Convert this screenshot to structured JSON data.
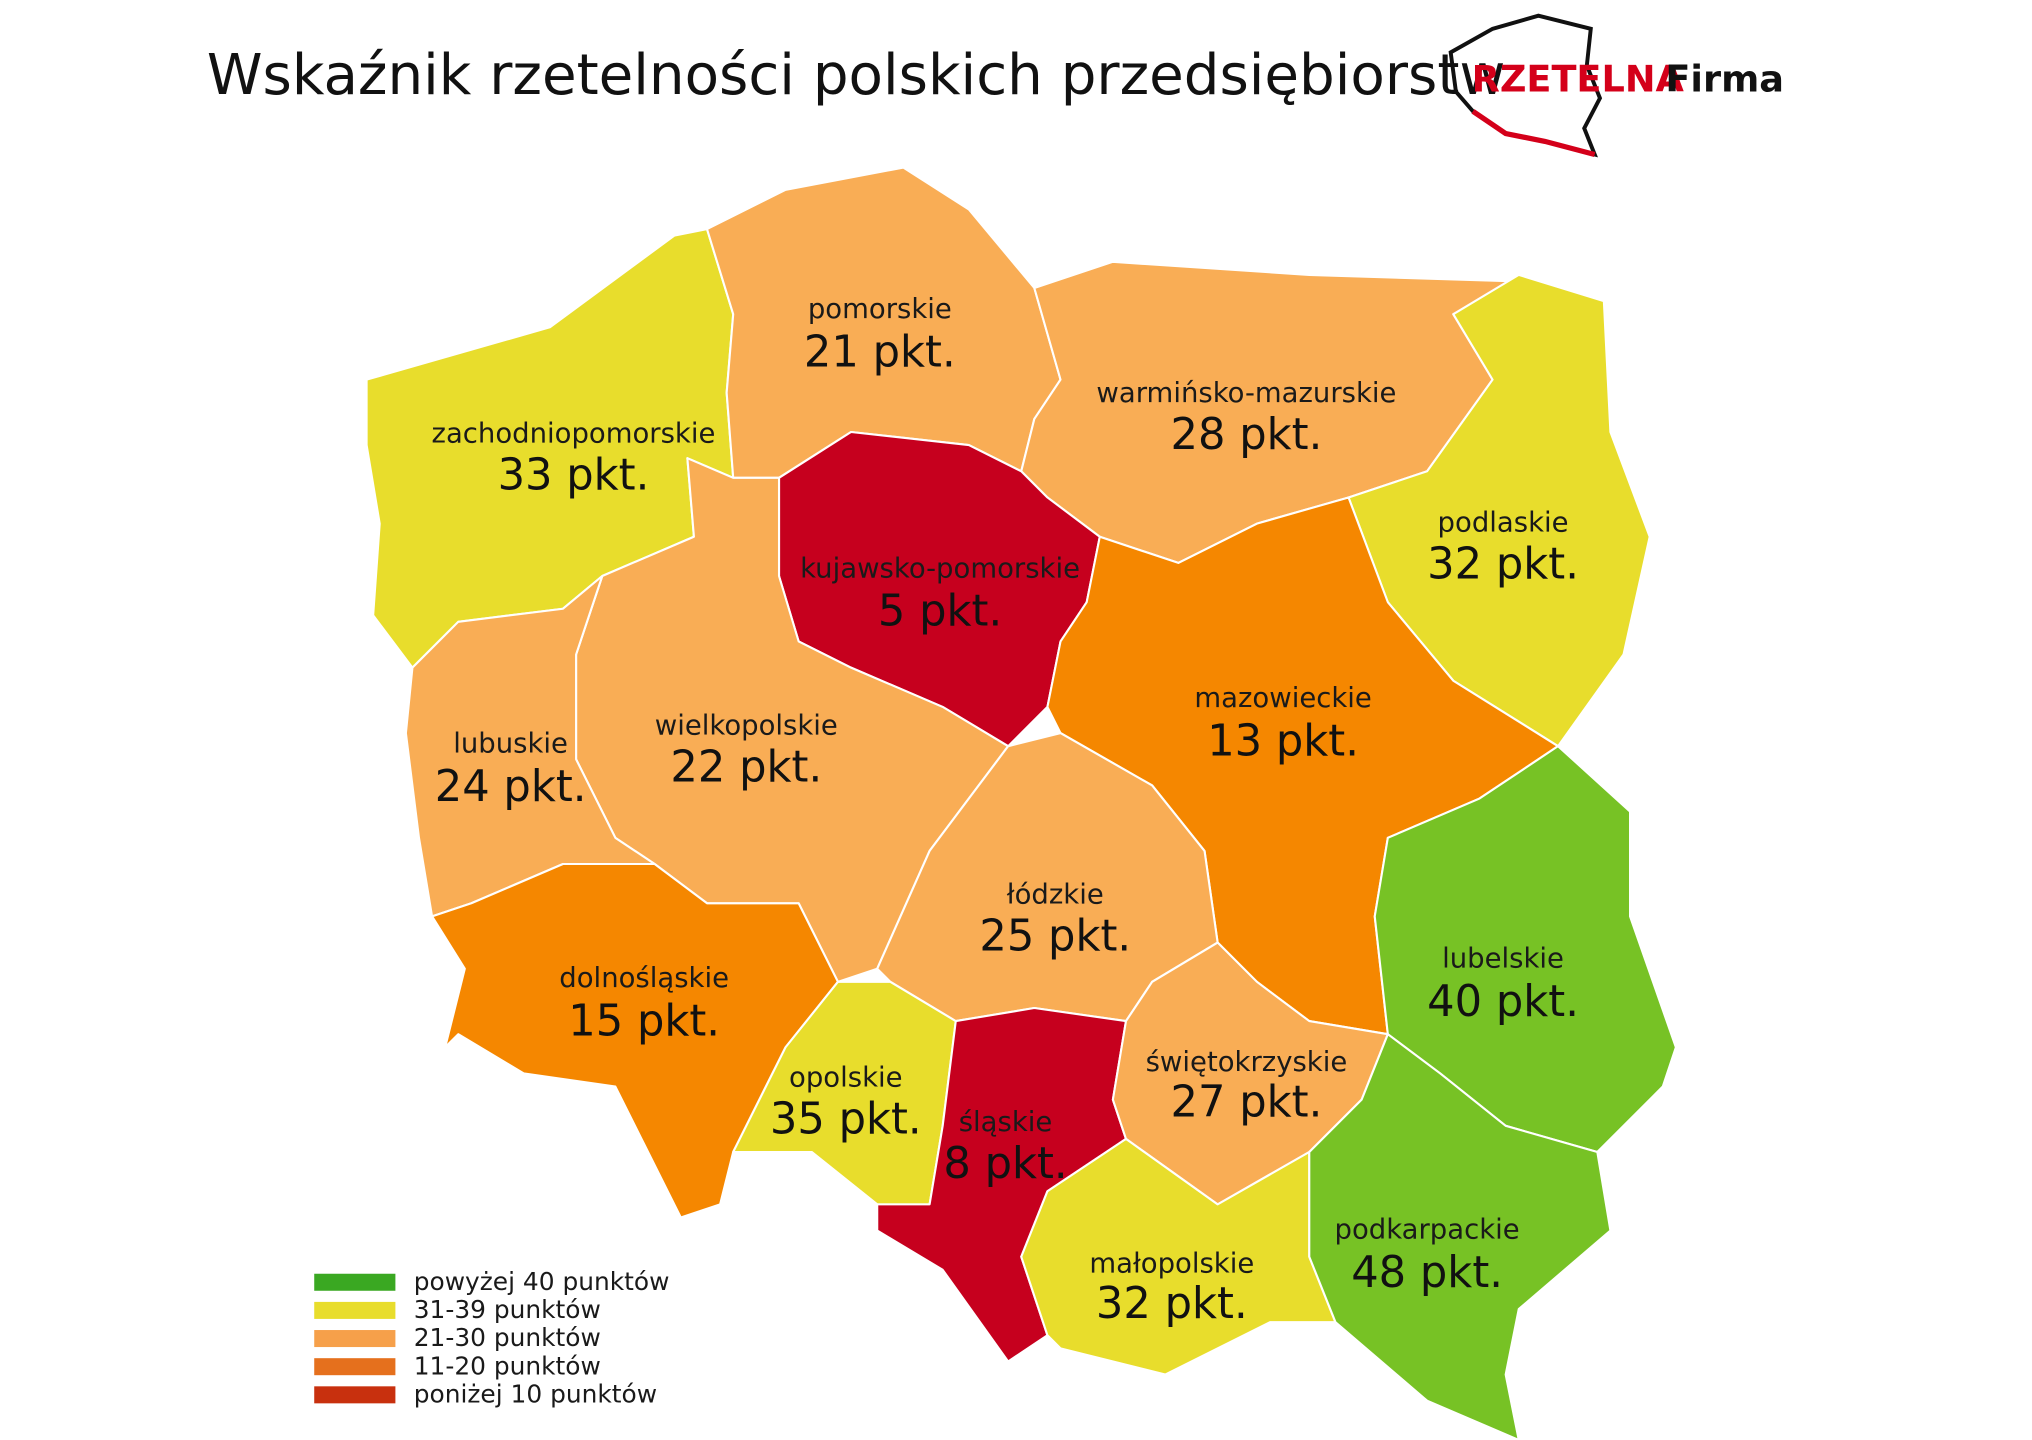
{
  "header": {
    "title": "Wskaźnik rzetelności polskich przedsiębiorstw",
    "logo": {
      "brand": "RZETELNA",
      "word": "Firma"
    }
  },
  "regions": [
    {
      "name": "zachodniopomorskie",
      "label": "33 pkt.",
      "color": "#e8dd2c"
    },
    {
      "name": "pomorskie",
      "label": "21 pkt.",
      "color": "#f9ad55"
    },
    {
      "name": "warmińsko-mazurskie",
      "label": "28 pkt.",
      "color": "#f9ad55"
    },
    {
      "name": "podlaskie",
      "label": "32 pkt.",
      "color": "#e8dd2c"
    },
    {
      "name": "kujawsko-pomorskie",
      "label": "5 pkt.",
      "color": "#c6001e"
    },
    {
      "name": "wielkopolskie",
      "label": "22 pkt.",
      "color": "#f9ad55"
    },
    {
      "name": "lubuskie",
      "label": "24 pkt.",
      "color": "#f9ad55"
    },
    {
      "name": "dolnośląskie",
      "label": "15 pkt.",
      "color": "#f58700"
    },
    {
      "name": "mazowieckie",
      "label": "13 pkt.",
      "color": "#f58700"
    },
    {
      "name": "łódzkie",
      "label": "25 pkt.",
      "color": "#f9ad55"
    },
    {
      "name": "lubelskie",
      "label": "40 pkt.",
      "color": "#77c225"
    },
    {
      "name": "opolskie",
      "label": "35 pkt.",
      "color": "#e8dd2c"
    },
    {
      "name": "śląskie",
      "label": "8 pkt.",
      "color": "#c6001e"
    },
    {
      "name": "świętokrzyskie",
      "label": "27 pkt.",
      "color": "#f9ad55"
    },
    {
      "name": "małopolskie",
      "label": "32 pkt.",
      "color": "#e8dd2c"
    },
    {
      "name": "podkarpackie",
      "label": "48 pkt.",
      "color": "#77c225"
    }
  ],
  "legend": [
    {
      "label": "powyżej 40 punktów",
      "color": "#3aa822"
    },
    {
      "label": "31-39 punktów",
      "color": "#e8dd2c"
    },
    {
      "label": "21-30 punktów",
      "color": "#f6a04a"
    },
    {
      "label": "11-20 punktów",
      "color": "#e5701d"
    },
    {
      "label": "poniżej 10 punktów",
      "color": "#c8300e"
    }
  ]
}
